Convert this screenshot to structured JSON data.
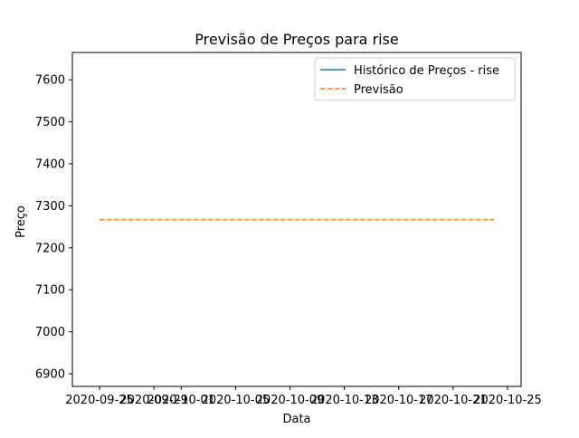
{
  "chart_data": {
    "type": "line",
    "title": "Previsão de Preços para rise",
    "xlabel": "Data",
    "ylabel": "Preço",
    "x_range": [
      "2020-09-23",
      "2020-10-26"
    ],
    "ylim": [
      6870,
      7665
    ],
    "x_ticks": [
      "2020-09-25",
      "2020-09-29",
      "2020-10-01",
      "2020-10-05",
      "2020-10-09",
      "2020-10-13",
      "2020-10-17",
      "2020-10-21",
      "2020-10-25"
    ],
    "y_ticks": [
      6900,
      7000,
      7100,
      7200,
      7300,
      7400,
      7500,
      7600
    ],
    "legend_position": "top-right",
    "grid": false,
    "series": [
      {
        "name": "Histórico de Preços - rise",
        "color": "#1f77b4",
        "style": "solid",
        "points": []
      },
      {
        "name": "Previsão",
        "color": "#ff7f0e",
        "style": "dashed",
        "points": [
          {
            "x": "2020-09-25",
            "y": 7267
          },
          {
            "x": "2020-10-24",
            "y": 7267
          }
        ]
      }
    ]
  }
}
